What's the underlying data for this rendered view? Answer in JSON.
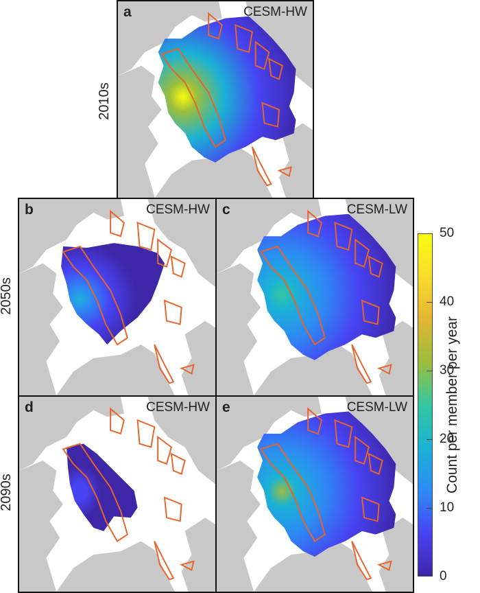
{
  "panels": [
    {
      "letter": "a",
      "model": "CESM-HW",
      "extent": "full",
      "intensity": 1.0
    },
    {
      "letter": "b",
      "model": "CESM-HW",
      "extent": "medium",
      "intensity": 0.35
    },
    {
      "letter": "c",
      "model": "CESM-LW",
      "extent": "full",
      "intensity": 0.55
    },
    {
      "letter": "d",
      "model": "CESM-HW",
      "extent": "small",
      "intensity": 0.15
    },
    {
      "letter": "e",
      "model": "CESM-LW",
      "extent": "full",
      "intensity": 0.6
    }
  ],
  "rows": [
    "2010s",
    "2050s",
    "2090s"
  ],
  "colorbar": {
    "label": "Count per member per year",
    "ticks": [
      "0",
      "10",
      "20",
      "30",
      "40",
      "50"
    ],
    "min": 0,
    "max": 50
  },
  "colors": {
    "land": "#c8c8c8",
    "outline": "#e8642a",
    "cmap": [
      "#3e26a8",
      "#4743f3",
      "#2d8cf4",
      "#1ab2d5",
      "#34c7a0",
      "#9bbe3d",
      "#e3b534",
      "#fadc2b",
      "#f9fb0e"
    ]
  }
}
